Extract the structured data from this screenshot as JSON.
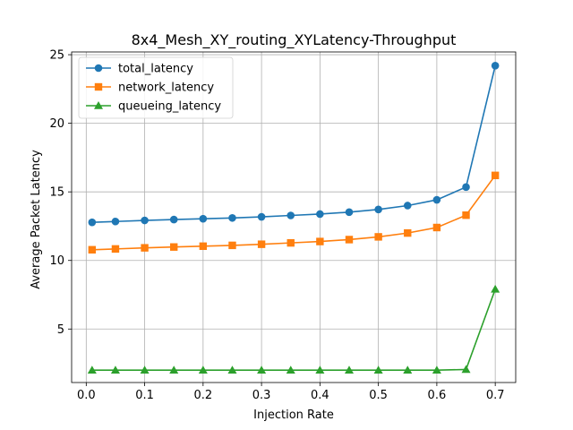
{
  "chart_data": {
    "type": "line",
    "title": "8x4_Mesh_XY_routing_XYLatency-Throughput",
    "xlabel": "Injection Rate",
    "ylabel": "Average Packet Latency",
    "xlim": [
      -0.025,
      0.735
    ],
    "ylim": [
      1.1,
      25.2
    ],
    "xticks": [
      0.0,
      0.1,
      0.2,
      0.3,
      0.4,
      0.5,
      0.6,
      0.7
    ],
    "xtick_labels": [
      "0.0",
      "0.1",
      "0.2",
      "0.3",
      "0.4",
      "0.5",
      "0.6",
      "0.7"
    ],
    "yticks": [
      5,
      10,
      15,
      20,
      25
    ],
    "ytick_labels": [
      "5",
      "10",
      "15",
      "20",
      "25"
    ],
    "grid": true,
    "legend_position": "top-left",
    "x": [
      0.01,
      0.05,
      0.1,
      0.15,
      0.2,
      0.25,
      0.3,
      0.35,
      0.4,
      0.45,
      0.5,
      0.55,
      0.6,
      0.65,
      0.7
    ],
    "series": [
      {
        "name": "total_latency",
        "color": "#1f77b4",
        "marker": "circle",
        "values": [
          12.78,
          12.84,
          12.92,
          12.98,
          13.04,
          13.1,
          13.18,
          13.28,
          13.38,
          13.52,
          13.72,
          14.0,
          14.42,
          15.35,
          24.2
        ]
      },
      {
        "name": "network_latency",
        "color": "#ff7f0e",
        "marker": "square",
        "values": [
          10.78,
          10.84,
          10.92,
          10.98,
          11.04,
          11.1,
          11.18,
          11.28,
          11.38,
          11.52,
          11.72,
          12.0,
          12.4,
          13.3,
          16.2
        ]
      },
      {
        "name": "queueing_latency",
        "color": "#2ca02c",
        "marker": "triangle",
        "values": [
          2.0,
          2.0,
          2.0,
          2.0,
          2.0,
          2.0,
          2.0,
          2.0,
          2.0,
          2.0,
          2.0,
          2.0,
          2.0,
          2.05,
          7.9
        ]
      }
    ]
  }
}
